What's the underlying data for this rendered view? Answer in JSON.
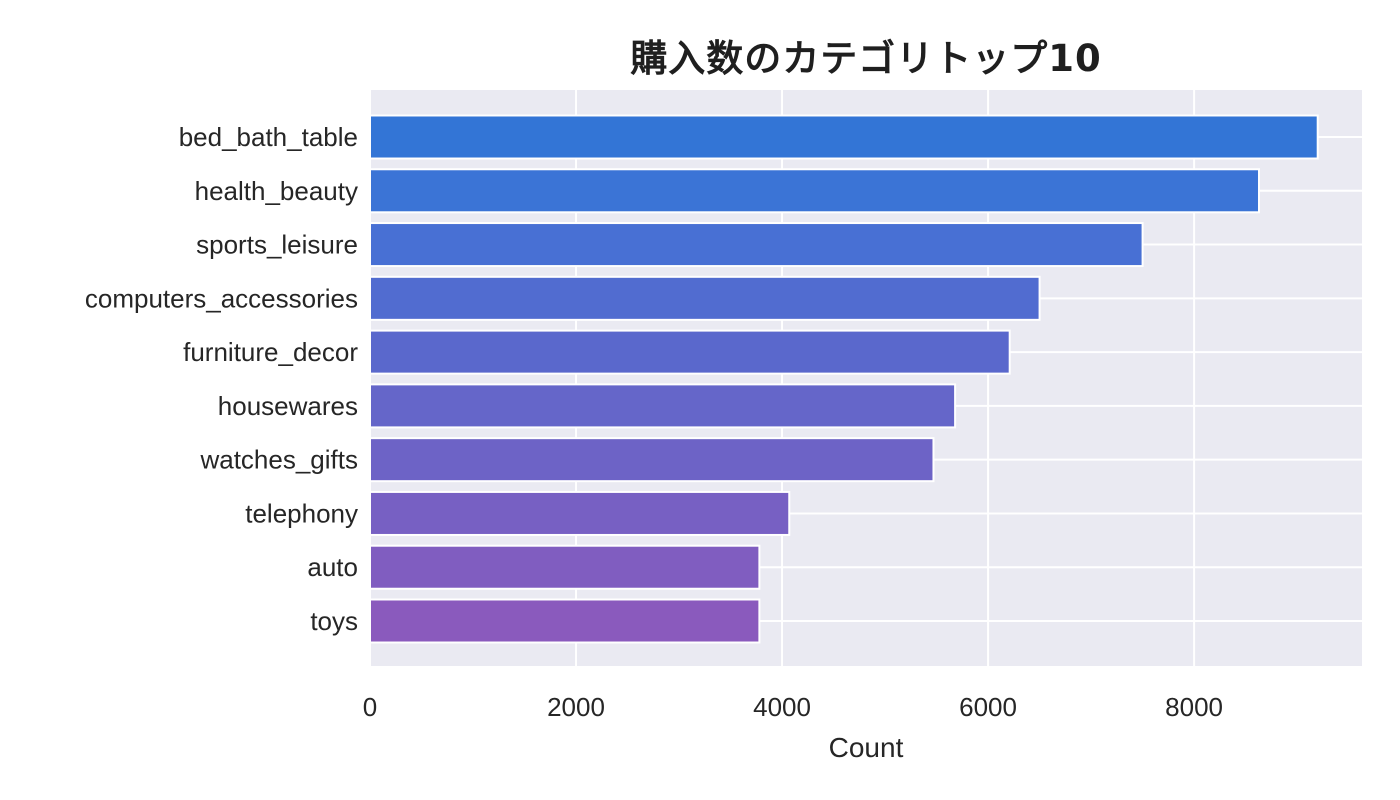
{
  "chart_data": {
    "type": "bar",
    "orientation": "horizontal",
    "title": "購入数のカテゴリトップ10",
    "xlabel": "Count",
    "ylabel": "",
    "categories": [
      "bed_bath_table",
      "health_beauty",
      "sports_leisure",
      "computers_accessories",
      "furniture_decor",
      "housewares",
      "watches_gifts",
      "telephony",
      "auto",
      "toys"
    ],
    "values": [
      9200,
      8630,
      7500,
      6500,
      6210,
      5680,
      5470,
      4070,
      3780,
      3780
    ],
    "xlim": [
      0,
      9630
    ],
    "xticks": [
      0,
      2000,
      4000,
      6000,
      8000
    ],
    "grid": true,
    "colors": [
      "#3375d6",
      "#3b74d6",
      "#4870d4",
      "#516cd0",
      "#5a68cc",
      "#6566c9",
      "#6d63c6",
      "#7760c3",
      "#805dc0",
      "#8a5abd"
    ],
    "background": "#eaeaf2",
    "grid_color": "#ffffff"
  }
}
